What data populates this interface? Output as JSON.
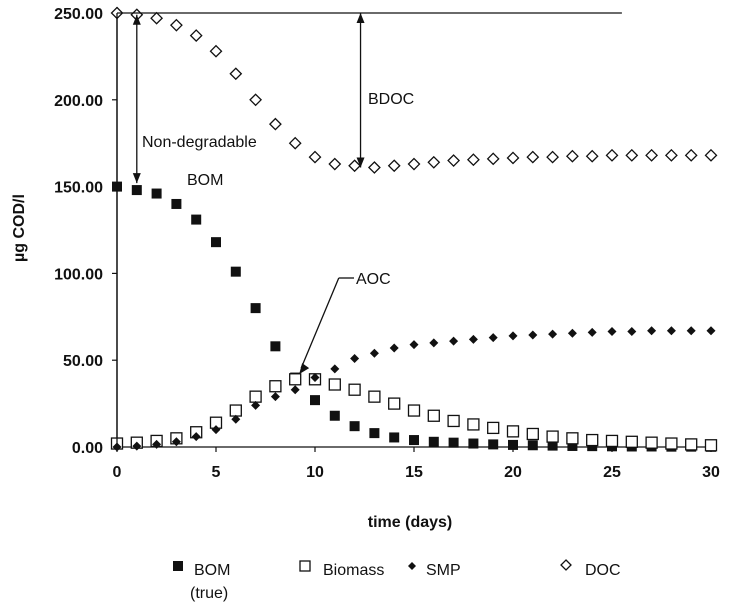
{
  "chart_data": {
    "type": "scatter",
    "title": "",
    "xlabel": "time (days)",
    "ylabel": "µg COD/l",
    "xlim": [
      0,
      30
    ],
    "ylim": [
      0,
      250
    ],
    "x_ticks": [
      "0",
      "5",
      "10",
      "15",
      "20",
      "25",
      "30"
    ],
    "y_ticks": [
      "0.00",
      "50.00",
      "100.00",
      "150.00",
      "200.00",
      "250.00"
    ],
    "grid": false,
    "legend_position": "bottom",
    "series": [
      {
        "name": "BOM",
        "name_line2": "(true)",
        "marker": "filled-square",
        "x": [
          0,
          1,
          2,
          3,
          4,
          5,
          6,
          7,
          8,
          9,
          10,
          11,
          12,
          13,
          14,
          15,
          16,
          17,
          18,
          19,
          20,
          21,
          22,
          23,
          24,
          25,
          26,
          27,
          28,
          29,
          30
        ],
        "values": [
          150,
          148,
          146,
          140,
          131,
          118,
          101,
          80,
          58,
          40,
          27,
          18,
          12,
          8,
          5.5,
          4,
          3,
          2.5,
          2,
          1.5,
          1.2,
          1,
          0.8,
          0.6,
          0.5,
          0.4,
          0.3,
          0.3,
          0.2,
          0.2,
          0.1
        ]
      },
      {
        "name": "Biomass",
        "marker": "open-square",
        "x": [
          0,
          1,
          2,
          3,
          4,
          5,
          6,
          7,
          8,
          9,
          10,
          11,
          12,
          13,
          14,
          15,
          16,
          17,
          18,
          19,
          20,
          21,
          22,
          23,
          24,
          25,
          26,
          27,
          28,
          29,
          30
        ],
        "values": [
          2,
          2.5,
          3.5,
          5,
          8.5,
          14,
          21,
          29,
          35,
          39,
          39,
          36,
          33,
          29,
          25,
          21,
          18,
          15,
          13,
          11,
          9,
          7.5,
          6,
          5,
          4,
          3.5,
          3,
          2.5,
          2,
          1.5,
          1
        ]
      },
      {
        "name": "SMP",
        "marker": "filled-diamond",
        "x": [
          0,
          1,
          2,
          3,
          4,
          5,
          6,
          7,
          8,
          9,
          10,
          11,
          12,
          13,
          14,
          15,
          16,
          17,
          18,
          19,
          20,
          21,
          22,
          23,
          24,
          25,
          26,
          27,
          28,
          29,
          30
        ],
        "values": [
          0,
          0.5,
          1.5,
          3,
          6,
          10,
          16,
          24,
          29,
          33,
          40,
          45,
          51,
          54,
          57,
          59,
          60,
          61,
          62,
          63,
          64,
          64.5,
          65,
          65.5,
          66,
          66.5,
          66.5,
          67,
          67,
          67,
          67
        ]
      },
      {
        "name": "DOC",
        "marker": "open-diamond",
        "x": [
          0,
          1,
          2,
          3,
          4,
          5,
          6,
          7,
          8,
          9,
          10,
          11,
          12,
          13,
          14,
          15,
          16,
          17,
          18,
          19,
          20,
          21,
          22,
          23,
          24,
          25,
          26,
          27,
          28,
          29,
          30
        ],
        "values": [
          250,
          249,
          247,
          243,
          237,
          228,
          215,
          200,
          186,
          175,
          167,
          163,
          162,
          161,
          162,
          163,
          164,
          165,
          165.5,
          166,
          166.5,
          167,
          167,
          167.5,
          167.5,
          168,
          168,
          168,
          168,
          168,
          168
        ]
      }
    ],
    "annotations": {
      "bdoc": "BDOC",
      "non_degradable": "Non-degradable",
      "bom": "BOM",
      "aoc": "AOC"
    }
  }
}
